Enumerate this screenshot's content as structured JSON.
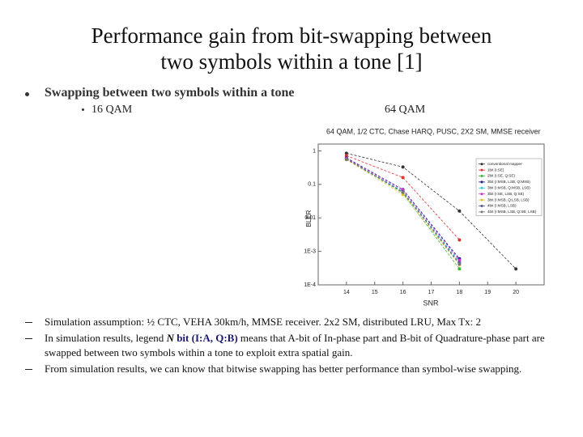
{
  "title_lines": [
    "Performance gain from bit-swapping between",
    "two symbols within a tone [1]"
  ],
  "bullet": "Swapping between two symbols within a tone",
  "sub_bullet": "16 QAM",
  "right_label": "64 QAM",
  "chart_data": {
    "type": "line",
    "title": "64 QAM, 1/2 CTC, Chase HARQ, PUSC, 2X2 SM, MMSE receiver",
    "x_label": "SNR",
    "y_label": "BLER",
    "x": [
      14,
      16,
      18,
      20
    ],
    "xlim": [
      13,
      21
    ],
    "xticks": [
      14,
      15,
      16,
      17,
      18,
      19,
      20
    ],
    "ylim": [
      0.0001,
      1.6
    ],
    "y_log": true,
    "yticks": [
      1,
      0.1,
      0.01,
      {
        "value": 0.001,
        "label": "1E-3"
      },
      {
        "value": 0.0001,
        "label": "1E-4"
      }
    ],
    "grid": false,
    "legend_position": "upper right",
    "series": [
      {
        "name": "conventional mapper",
        "color": "#333333",
        "values": [
          0.85,
          0.33,
          0.016,
          0.0003
        ]
      },
      {
        "name": "1bit (I:SE)",
        "color": "#e03030",
        "values": [
          0.72,
          0.16,
          0.0022,
          null
        ]
      },
      {
        "name": "2bit (I:SE, Q:SE)",
        "color": "#33bb33",
        "values": [
          0.6,
          0.055,
          0.0003,
          null
        ]
      },
      {
        "name": "3bit (I:MSB, LSB, Q:MSB)",
        "color": "#1a1a80",
        "values": [
          0.62,
          0.07,
          0.0006,
          null
        ]
      },
      {
        "name": "3bit (I:MSB, Q:MSB, LSB)",
        "color": "#33cccc",
        "values": [
          0.58,
          0.062,
          0.0005,
          null
        ]
      },
      {
        "name": "3bit (I:SE, LSB, Q:SE)",
        "color": "#cc33cc",
        "values": [
          0.6,
          0.068,
          0.00055,
          null
        ]
      },
      {
        "name": "3bit (I:MSB, Q:LSB, LSB)",
        "color": "#d4c22a",
        "values": [
          0.55,
          0.05,
          0.0004,
          null
        ]
      },
      {
        "name": "4bit (I:MSB, LSB)",
        "color": "#555599",
        "values": [
          0.57,
          0.06,
          0.00045,
          null
        ]
      },
      {
        "name": "4bit (I:MSB, LSB, Q:SB, LSB)",
        "color": "#777777",
        "values": [
          0.56,
          0.058,
          0.00042,
          null
        ]
      }
    ]
  },
  "notes": [
    "Simulation assumption: ½ CTC, VEHA 30km/h, MMSE receiver. 2x2 SM, distributed LRU, Max Tx: 2",
    {
      "before": "In simulation results, legend ",
      "n": "N",
      "bold": " bit (I:A, Q:B)",
      "after": " means that A-bit of In-phase part and B-bit of Quadrature-phase part are swapped between two symbols within a tone to exploit extra spatial gain."
    },
    "From simulation results, we can know that bitwise swapping  has better performance than symbol-wise swapping."
  ]
}
